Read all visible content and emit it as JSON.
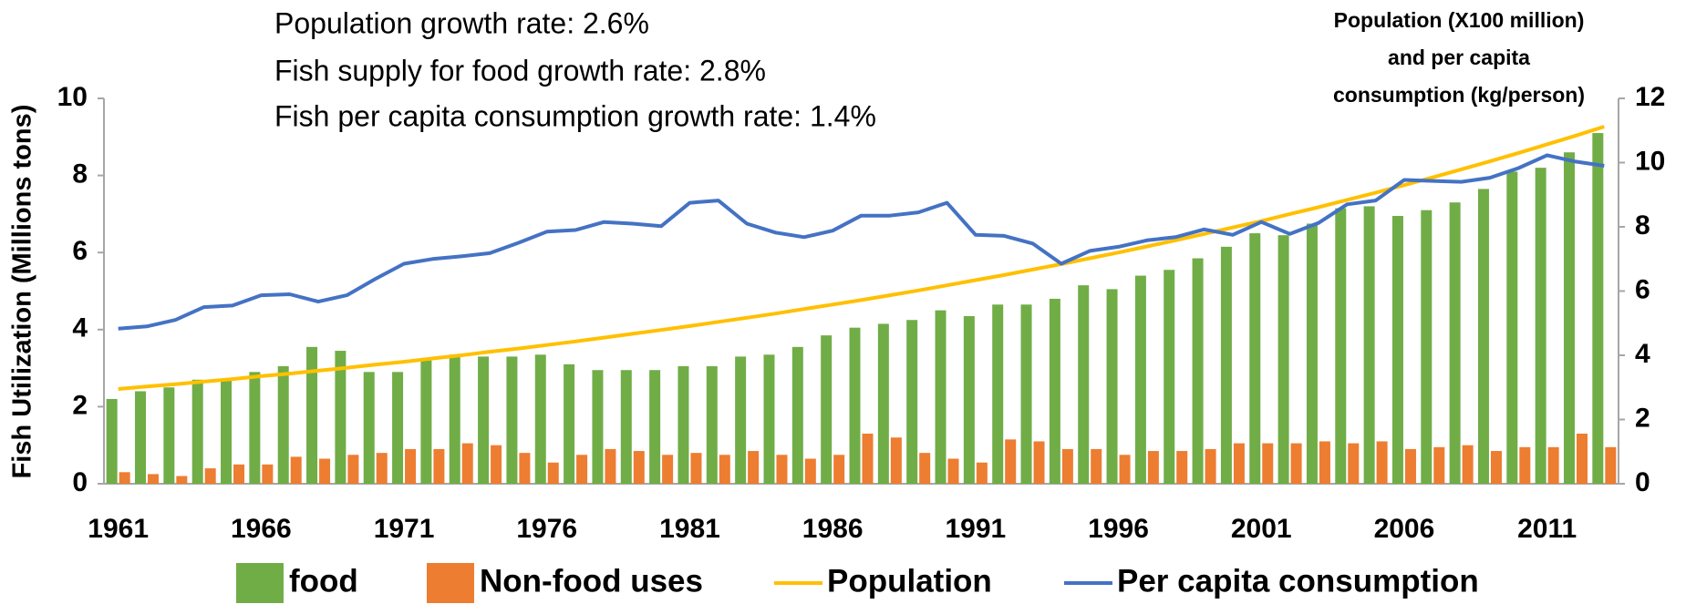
{
  "chart_data": {
    "type": "bar",
    "annotations": [
      "Population growth rate: 2.6%",
      "Fish supply for food growth rate: 2.8%",
      "Fish per capita consumption growth rate: 1.4%"
    ],
    "ylabel": "Fish Utilization (Millions tons)",
    "y2label": [
      "Population  (X100 million)",
      "and per capita",
      "consumption  (kg/person)"
    ],
    "categories": [
      "1961",
      null,
      null,
      null,
      null,
      "1966",
      null,
      null,
      null,
      null,
      "1971",
      null,
      null,
      null,
      null,
      "1976",
      null,
      null,
      null,
      null,
      "1981",
      null,
      null,
      null,
      null,
      "1986",
      null,
      null,
      null,
      null,
      "1991",
      null,
      null,
      null,
      null,
      "1996",
      null,
      null,
      null,
      null,
      "2001",
      null,
      null,
      null,
      null,
      "2006",
      null,
      null,
      null,
      null,
      "2011",
      null,
      null
    ],
    "series": [
      {
        "name": "food",
        "type": "bar",
        "color": "#70ad47",
        "values": [
          2.2,
          2.4,
          2.5,
          2.7,
          2.7,
          2.9,
          3.05,
          3.55,
          3.45,
          2.9,
          2.9,
          3.2,
          3.35,
          3.3,
          3.3,
          3.35,
          3.1,
          2.95,
          2.95,
          2.95,
          3.05,
          3.05,
          3.3,
          3.35,
          3.55,
          3.85,
          4.05,
          4.15,
          4.25,
          4.5,
          4.35,
          4.65,
          4.65,
          4.8,
          5.15,
          5.05,
          5.4,
          5.55,
          5.85,
          6.15,
          6.5,
          6.45,
          6.75,
          7.15,
          7.2,
          6.95,
          7.1,
          7.3,
          7.65,
          8.1,
          8.2,
          8.6,
          9.1
        ]
      },
      {
        "name": "Non-food uses",
        "type": "bar",
        "color": "#ed7d31",
        "values": [
          0.3,
          0.25,
          0.2,
          0.4,
          0.5,
          0.5,
          0.7,
          0.65,
          0.75,
          0.8,
          0.9,
          0.9,
          1.05,
          1.0,
          0.8,
          0.55,
          0.75,
          0.9,
          0.85,
          0.75,
          0.8,
          0.75,
          0.85,
          0.75,
          0.65,
          0.75,
          1.3,
          1.2,
          0.8,
          0.65,
          0.55,
          1.15,
          1.1,
          0.9,
          0.9,
          0.75,
          0.85,
          0.85,
          0.9,
          1.05,
          1.05,
          1.05,
          1.1,
          1.05,
          1.1,
          0.9,
          0.95,
          1.0,
          0.85,
          0.95,
          0.95,
          1.3,
          0.95
        ]
      },
      {
        "name": "Population",
        "type": "line",
        "axis": "y2",
        "color": "#ffc000",
        "values": [
          2.95,
          3.03,
          3.1,
          3.18,
          3.26,
          3.35,
          3.43,
          3.52,
          3.61,
          3.71,
          3.8,
          3.9,
          4.0,
          4.11,
          4.21,
          4.32,
          4.43,
          4.55,
          4.67,
          4.79,
          4.91,
          5.04,
          5.17,
          5.3,
          5.44,
          5.58,
          5.72,
          5.87,
          6.02,
          6.18,
          6.34,
          6.5,
          6.67,
          6.84,
          7.02,
          7.2,
          7.39,
          7.58,
          7.78,
          7.98,
          8.18,
          8.4,
          8.61,
          8.84,
          9.06,
          9.3,
          9.54,
          9.79,
          10.04,
          10.3,
          10.57,
          10.84,
          11.12
        ]
      },
      {
        "name": "Per capita consumption",
        "type": "line",
        "axis": "y2",
        "color": "#4472c4",
        "values": [
          4.83,
          4.9,
          5.1,
          5.5,
          5.55,
          5.87,
          5.9,
          5.67,
          5.87,
          6.38,
          6.85,
          7.0,
          7.08,
          7.18,
          7.5,
          7.85,
          7.9,
          8.15,
          8.1,
          8.02,
          8.75,
          8.82,
          8.1,
          7.82,
          7.68,
          7.88,
          8.35,
          8.35,
          8.45,
          8.75,
          7.75,
          7.72,
          7.48,
          6.85,
          7.25,
          7.38,
          7.58,
          7.68,
          7.92,
          7.75,
          8.15,
          7.78,
          8.12,
          8.7,
          8.82,
          9.46,
          9.43,
          9.4,
          9.53,
          9.83,
          10.23,
          10.03,
          9.9
        ]
      }
    ],
    "ylim": [
      0,
      10
    ],
    "yticks": [
      0,
      2,
      4,
      6,
      8,
      10
    ],
    "y2lim": [
      0,
      12
    ],
    "y2ticks": [
      0,
      2,
      4,
      6,
      8,
      10,
      12
    ],
    "grid": false
  }
}
